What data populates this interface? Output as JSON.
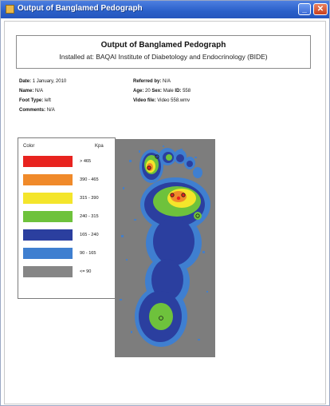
{
  "window": {
    "title": "Output of Banglamed Pedograph"
  },
  "report": {
    "title": "Output of Banglamed Pedograph",
    "subtitle": "Installed at: BAQAI Institute of Diabetology and Endocrinology (BIDE)"
  },
  "details": {
    "date_label": "Date:",
    "date_value": "1 January, 2010",
    "name_label": "Name:",
    "name_value": "N/A",
    "foot_type_label": "Foot Type:",
    "foot_type_value": "left",
    "comments_label": "Comments:",
    "comments_value": "N/A",
    "referred_label": "Referred by:",
    "referred_value": "N/A",
    "age_label": "Age:",
    "age_value": "20",
    "sex_label": "Sex:",
    "sex_value": "Male",
    "id_label": "ID:",
    "id_value": "558",
    "video_label": "Video file:",
    "video_value": "Video 558.wmv"
  },
  "legend": {
    "color_header": "Color",
    "unit_header": "Kpa",
    "items": [
      {
        "color": "#e8231f",
        "range": "> 465"
      },
      {
        "color": "#f08a2a",
        "range": "390 - 465"
      },
      {
        "color": "#f4e52b",
        "range": "315 - 390"
      },
      {
        "color": "#6ec23c",
        "range": "240 - 315"
      },
      {
        "color": "#2b3f9f",
        "range": "165 - 240"
      },
      {
        "color": "#3f7fd0",
        "range": "90 - 165"
      },
      {
        "color": "#868686",
        "range": "<= 90"
      }
    ]
  },
  "pressure_map": {
    "background": "#7d7d7d"
  }
}
